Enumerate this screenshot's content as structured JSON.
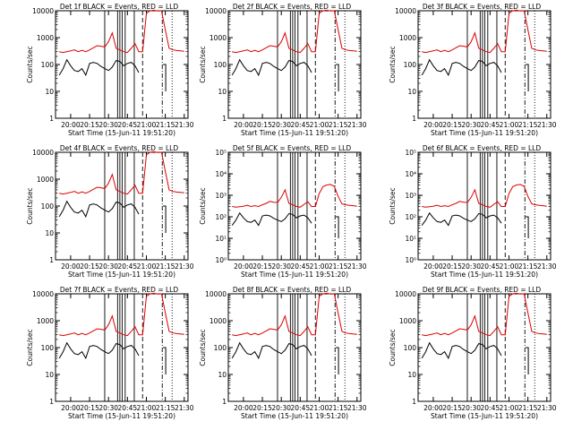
{
  "chart_data": [
    {
      "type": "line",
      "title": "Det 1f BLACK = Events, RED = LLD",
      "xlabel": "Start Time (15-Jun-11 19:51:20)",
      "ylabel": "Counts/sec",
      "yscale": "log",
      "ylim": [
        1,
        10000
      ],
      "ytick_labels": [
        "1",
        "10",
        "100",
        "1000",
        "10000"
      ],
      "xlim": [
        19.8,
        21.55
      ],
      "xtick_labels": [
        "20:00",
        "20:15",
        "20:30",
        "20:45",
        "21:00",
        "21:15",
        "21:30"
      ],
      "red_level": "mid"
    },
    {
      "type": "line",
      "title": "Det 2f BLACK = Events, RED = LLD",
      "xlabel": "Start Time (15-Jun-11 19:51:20)",
      "ylabel": "Counts/sec",
      "yscale": "log",
      "ylim": [
        1,
        10000
      ],
      "ytick_labels": [
        "1",
        "10",
        "100",
        "1000",
        "10000"
      ],
      "xlim": [
        19.8,
        21.55
      ],
      "xtick_labels": [
        "20:00",
        "20:15",
        "20:30",
        "20:45",
        "21:00",
        "21:15",
        "21:30"
      ],
      "red_level": "mid"
    },
    {
      "type": "line",
      "title": "Det 3f BLACK = Events, RED = LLD",
      "xlabel": "Start Time (15-Jun-11 19:51:20)",
      "ylabel": "Counts/sec",
      "yscale": "log",
      "ylim": [
        1,
        10000
      ],
      "ytick_labels": [
        "1",
        "10",
        "100",
        "1000",
        "10000"
      ],
      "xlim": [
        19.8,
        21.55
      ],
      "xtick_labels": [
        "20:00",
        "20:15",
        "20:30",
        "20:45",
        "21:00",
        "21:15",
        "21:30"
      ],
      "red_level": "mid"
    },
    {
      "type": "line",
      "title": "Det 4f BLACK = Events, RED = LLD",
      "xlabel": "Start Time (15-Jun-11 19:51:20)",
      "ylabel": "Counts/sec",
      "yscale": "log",
      "ylim": [
        1,
        10000
      ],
      "ytick_labels": [
        "1",
        "10",
        "100",
        "1000",
        "10000"
      ],
      "xlim": [
        19.8,
        21.55
      ],
      "xtick_labels": [
        "20:00",
        "20:15",
        "20:30",
        "20:45",
        "21:00",
        "21:15",
        "21:30"
      ],
      "red_level": "mid"
    },
    {
      "type": "line",
      "title": "Det 5f BLACK = Events, RED = LLD",
      "xlabel": "Start Time (15-Jun-11 19:51:20)",
      "ylabel": "Counts/sec",
      "yscale": "log",
      "ylim": [
        1,
        100000
      ],
      "ytick_labels": [
        "10⁰",
        "10¹",
        "10²",
        "10³",
        "10⁴",
        "10⁵"
      ],
      "xlim": [
        19.8,
        21.55
      ],
      "xtick_labels": [
        "20:00",
        "20:15",
        "20:30",
        "20:45",
        "21:00",
        "21:15",
        "21:30"
      ],
      "red_level": "low"
    },
    {
      "type": "line",
      "title": "Det 6f BLACK = Events, RED = LLD",
      "xlabel": "Start Time (15-Jun-11 19:51:20)",
      "ylabel": "Counts/sec",
      "yscale": "log",
      "ylim": [
        1,
        100000
      ],
      "ytick_labels": [
        "10⁰",
        "10¹",
        "10²",
        "10³",
        "10⁴",
        "10⁵"
      ],
      "xlim": [
        19.8,
        21.55
      ],
      "xtick_labels": [
        "20:00",
        "20:15",
        "20:30",
        "20:45",
        "21:00",
        "21:15",
        "21:30"
      ],
      "red_level": "low"
    },
    {
      "type": "line",
      "title": "Det 7f BLACK = Events, RED = LLD",
      "xlabel": "Start Time (15-Jun-11 19:51:20)",
      "ylabel": "Counts/sec",
      "yscale": "log",
      "ylim": [
        1,
        10000
      ],
      "ytick_labels": [
        "1",
        "10",
        "100",
        "1000",
        "10000"
      ],
      "xlim": [
        19.8,
        21.55
      ],
      "xtick_labels": [
        "20:00",
        "20:15",
        "20:30",
        "20:45",
        "21:00",
        "21:15",
        "21:30"
      ],
      "red_level": "mid"
    },
    {
      "type": "line",
      "title": "Det 8f BLACK = Events, RED = LLD",
      "xlabel": "Start Time (15-Jun-11 19:51:20)",
      "ylabel": "Counts/sec",
      "yscale": "log",
      "ylim": [
        1,
        10000
      ],
      "ytick_labels": [
        "1",
        "10",
        "100",
        "1000",
        "10000"
      ],
      "xlim": [
        19.8,
        21.55
      ],
      "xtick_labels": [
        "20:00",
        "20:15",
        "20:30",
        "20:45",
        "21:00",
        "21:15",
        "21:30"
      ],
      "red_level": "mid"
    },
    {
      "type": "line",
      "title": "Det 9f BLACK = Events, RED = LLD",
      "xlabel": "Start Time (15-Jun-11 19:51:20)",
      "ylabel": "Counts/sec",
      "yscale": "log",
      "ylim": [
        1,
        10000
      ],
      "ytick_labels": [
        "1",
        "10",
        "100",
        "1000",
        "10000"
      ],
      "xlim": [
        19.8,
        21.55
      ],
      "xtick_labels": [
        "20:00",
        "20:15",
        "20:30",
        "20:45",
        "21:00",
        "21:15",
        "21:30"
      ],
      "red_level": "mid"
    }
  ],
  "series_names": {
    "black": "Events",
    "red": "LLD"
  },
  "colors": {
    "black": "#000000",
    "red": "#dd0000"
  },
  "markers": {
    "solid_x": [
      20.45,
      20.62,
      20.65,
      20.68,
      20.72,
      20.84
    ],
    "dashed_x": [
      20.95
    ],
    "dashdot_x": [
      21.21
    ],
    "dotted_x": [
      21.34
    ]
  },
  "black_series": {
    "x": [
      19.85,
      19.9,
      19.95,
      20.0,
      20.05,
      20.1,
      20.15,
      20.2,
      20.25,
      20.3,
      20.35,
      20.4,
      20.45,
      20.5,
      20.55,
      20.6,
      20.65,
      20.7,
      20.75,
      20.8,
      20.85,
      20.9
    ],
    "y": [
      40,
      70,
      150,
      90,
      60,
      55,
      70,
      40,
      110,
      120,
      110,
      85,
      70,
      60,
      80,
      140,
      130,
      90,
      110,
      120,
      90,
      50
    ]
  },
  "red_series": {
    "x": [
      19.85,
      19.9,
      20.0,
      20.05,
      20.1,
      20.15,
      20.2,
      20.25,
      20.3,
      20.35,
      20.4,
      20.45,
      20.5,
      20.55,
      20.6,
      20.65,
      20.7,
      20.75,
      20.8,
      20.85,
      20.9,
      20.95,
      21.0,
      21.05,
      21.1,
      21.15,
      21.2,
      21.25,
      21.3,
      21.35,
      21.4,
      21.45,
      21.5
    ],
    "y_mid": [
      300,
      280,
      320,
      350,
      300,
      340,
      300,
      350,
      420,
      500,
      480,
      450,
      700,
      1500,
      400,
      350,
      300,
      280,
      400,
      600,
      300,
      300,
      8000,
      10000,
      10500,
      9800,
      10000,
      2000,
      400,
      350,
      330,
      320,
      310
    ],
    "y_low": [
      300,
      280,
      310,
      340,
      300,
      330,
      300,
      360,
      420,
      520,
      480,
      460,
      800,
      1800,
      420,
      360,
      300,
      280,
      380,
      500,
      300,
      300,
      1200,
      2500,
      3000,
      3200,
      2600,
      900,
      400,
      360,
      340,
      330,
      310
    ]
  }
}
